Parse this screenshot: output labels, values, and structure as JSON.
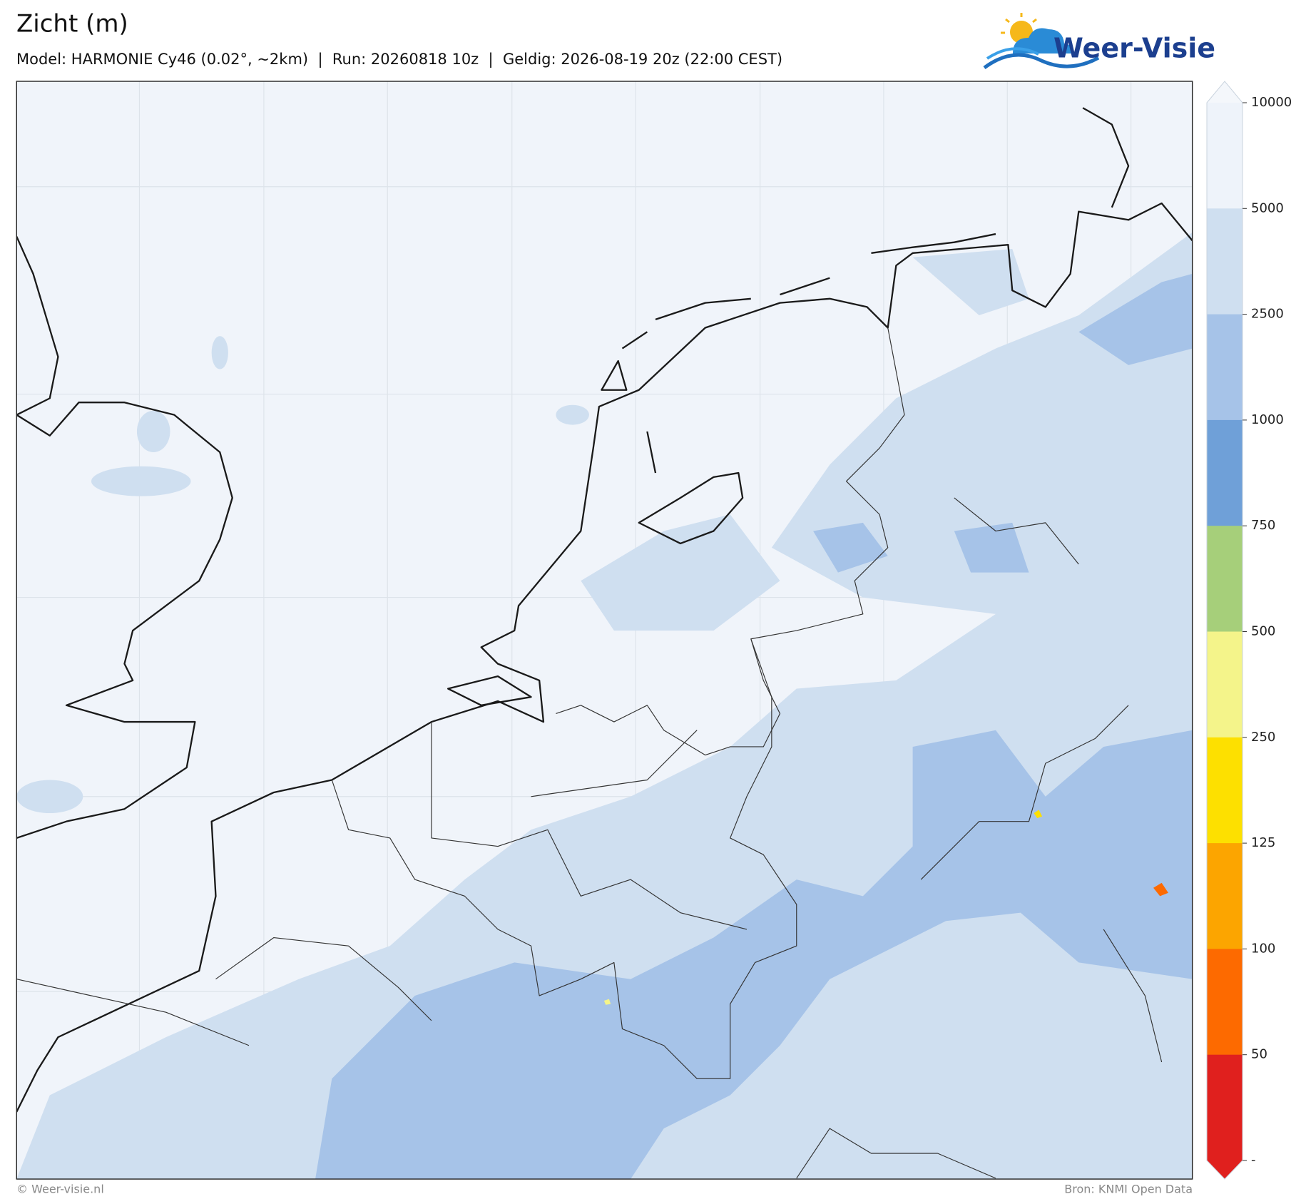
{
  "header": {
    "title": "Zicht (m)",
    "subtitle": "Model: HARMONIE Cy46 (0.02°, ~2km)  |  Run: 20260818 10z  |  Geldig: 2026-08-19 20z (22:00 CEST)"
  },
  "logo": {
    "text": "Weer-Visie"
  },
  "colorbar": {
    "ticks": [
      10000,
      5000,
      2500,
      1000,
      750,
      500,
      250,
      125,
      100,
      50
    ],
    "bottom_label": "-",
    "colors": [
      "#f4f7fb",
      "#eef3fa",
      "#cfdff0",
      "#a6c3e8",
      "#6fa0d8",
      "#a6cf7a",
      "#f4f48a",
      "#fde000",
      "#fca500",
      "#fd6a00",
      "#e0201e",
      "#e0201e"
    ]
  },
  "footer": {
    "left": "© Weer-visie.nl",
    "right": "Bron: KNMI Open Data"
  }
}
